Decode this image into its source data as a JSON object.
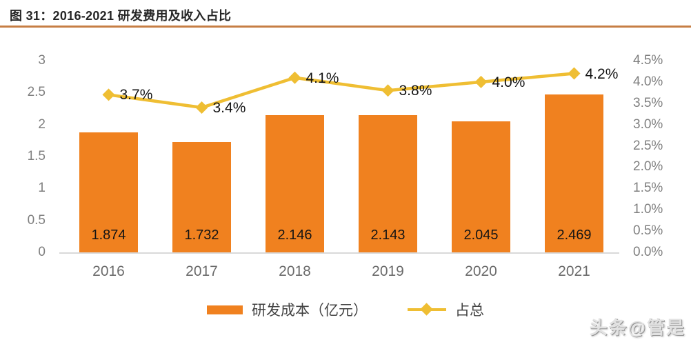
{
  "title": {
    "text": "图 31：2016-2021 研发费用及收入占比"
  },
  "colors": {
    "bar": "#F0811F",
    "line": "#EFBE33",
    "title_underline": "#C67E44",
    "axis_text": "#7F7F7F",
    "category_text": "#6B6B6B",
    "data_label_text": "#141414",
    "axis_line": "#D9D9D9",
    "legend_text": "#444444"
  },
  "chart_data": {
    "type": "combo",
    "title": "图 31：2016-2021 研发费用及收入占比",
    "categories": [
      "2016",
      "2017",
      "2018",
      "2019",
      "2020",
      "2021"
    ],
    "series": [
      {
        "name": "研发成本（亿元）",
        "type": "bar",
        "axis": "left",
        "values": [
          1.874,
          1.732,
          2.146,
          2.143,
          2.045,
          2.469
        ],
        "data_labels": [
          "1.874",
          "1.732",
          "2.146",
          "2.143",
          "2.045",
          "2.469"
        ]
      },
      {
        "name": "占总",
        "type": "line",
        "axis": "right",
        "values": [
          3.7,
          3.4,
          4.1,
          3.8,
          4.0,
          4.2
        ],
        "data_labels": [
          "3.7%",
          "3.4%",
          "4.1%",
          "3.8%",
          "4.0%",
          "4.2%"
        ]
      }
    ],
    "left_axis": {
      "min": 0,
      "max": 3,
      "step": 0.5,
      "tick_labels": [
        "3",
        "2.5",
        "2",
        "1.5",
        "1",
        "0.5",
        "0"
      ]
    },
    "right_axis": {
      "min": 0,
      "max": 4.5,
      "step": 0.5,
      "tick_labels": [
        "4.5%",
        "4.0%",
        "3.5%",
        "3.0%",
        "2.5%",
        "2.0%",
        "1.5%",
        "1.0%",
        "0.5%",
        "0.0%"
      ]
    },
    "grid": false,
    "legend_position": "bottom"
  },
  "legend": {
    "items": [
      {
        "label": "研发成本（亿元）",
        "marker": "bar-swatch"
      },
      {
        "label": "占总",
        "marker": "line-diamond"
      }
    ]
  },
  "page": {
    "watermark": "头条@管是"
  }
}
